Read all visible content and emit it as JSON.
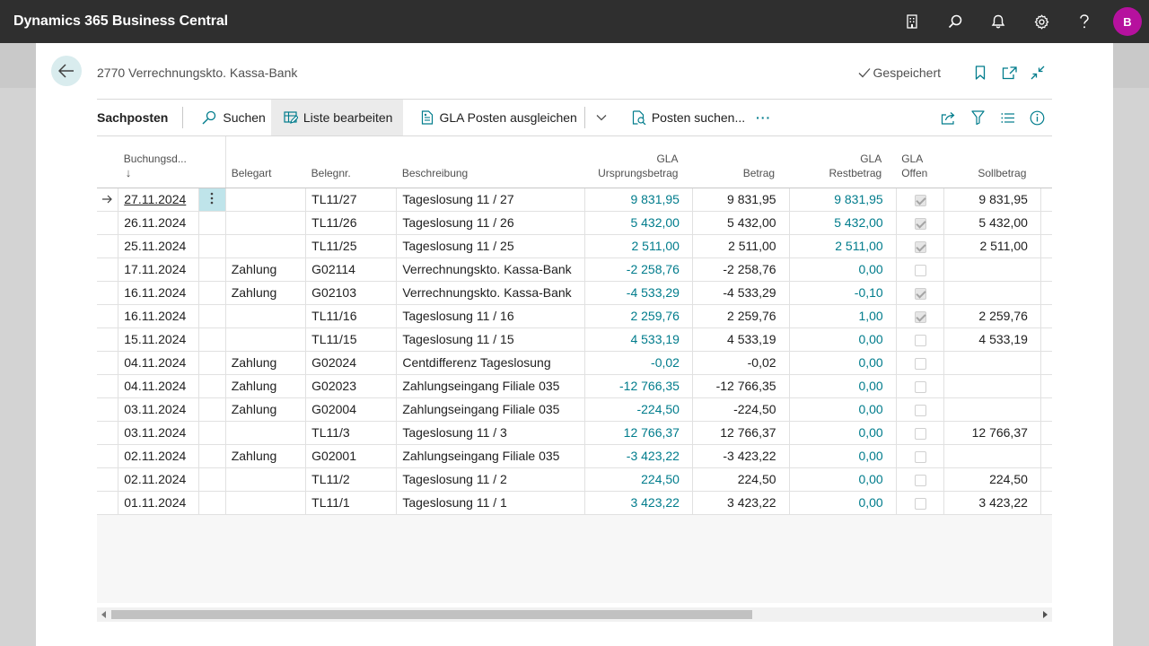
{
  "app": {
    "title": "Dynamics 365 Business Central",
    "avatar_initial": "B"
  },
  "page": {
    "title": "2770 Verrechnungskto. Kassa-Bank",
    "saved_label": "Gespeichert"
  },
  "actionbar": {
    "title": "Sachposten",
    "search": "Suchen",
    "edit_list": "Liste bearbeiten",
    "apply_entries": "GLA Posten ausgleichen",
    "find_entries": "Posten suchen...",
    "more": "···"
  },
  "columns": {
    "date_label": "Buchungsd...",
    "date_sort": "↓",
    "doc_type": "Belegart",
    "doc_no": "Belegnr.",
    "description": "Beschreibung",
    "orig_amount_l1": "GLA",
    "orig_amount_l2": "Ursprungsbetrag",
    "amount": "Betrag",
    "rem_amount_l1": "GLA",
    "rem_amount_l2": "Restbetrag",
    "open_l1": "GLA",
    "open_l2": "Offen",
    "debit": "Sollbetrag"
  },
  "rows": [
    {
      "date": "27.11.2024",
      "doctype": "",
      "docno": "TL11/27",
      "desc": "Tageslosung 11 / 27",
      "orig": "9 831,95",
      "amount": "9 831,95",
      "rest": "9 831,95",
      "open": true,
      "debit": "9 831,95"
    },
    {
      "date": "26.11.2024",
      "doctype": "",
      "docno": "TL11/26",
      "desc": "Tageslosung 11 / 26",
      "orig": "5 432,00",
      "amount": "5 432,00",
      "rest": "5 432,00",
      "open": true,
      "debit": "5 432,00"
    },
    {
      "date": "25.11.2024",
      "doctype": "",
      "docno": "TL11/25",
      "desc": "Tageslosung 11 / 25",
      "orig": "2 511,00",
      "amount": "2 511,00",
      "rest": "2 511,00",
      "open": true,
      "debit": "2 511,00"
    },
    {
      "date": "17.11.2024",
      "doctype": "Zahlung",
      "docno": "G02114",
      "desc": "Verrechnungskto. Kassa-Bank",
      "orig": "-2 258,76",
      "amount": "-2 258,76",
      "rest": "0,00",
      "open": false,
      "debit": ""
    },
    {
      "date": "16.11.2024",
      "doctype": "Zahlung",
      "docno": "G02103",
      "desc": "Verrechnungskto. Kassa-Bank",
      "orig": "-4 533,29",
      "amount": "-4 533,29",
      "rest": "-0,10",
      "open": true,
      "debit": ""
    },
    {
      "date": "16.11.2024",
      "doctype": "",
      "docno": "TL11/16",
      "desc": "Tageslosung 11 / 16",
      "orig": "2 259,76",
      "amount": "2 259,76",
      "rest": "1,00",
      "open": true,
      "debit": "2 259,76"
    },
    {
      "date": "15.11.2024",
      "doctype": "",
      "docno": "TL11/15",
      "desc": "Tageslosung 11 / 15",
      "orig": "4 533,19",
      "amount": "4 533,19",
      "rest": "0,00",
      "open": false,
      "debit": "4 533,19"
    },
    {
      "date": "04.11.2024",
      "doctype": "Zahlung",
      "docno": "G02024",
      "desc": "Centdifferenz Tageslosung",
      "orig": "-0,02",
      "amount": "-0,02",
      "rest": "0,00",
      "open": false,
      "debit": ""
    },
    {
      "date": "04.11.2024",
      "doctype": "Zahlung",
      "docno": "G02023",
      "desc": "Zahlungseingang Filiale 035",
      "orig": "-12 766,35",
      "amount": "-12 766,35",
      "rest": "0,00",
      "open": false,
      "debit": ""
    },
    {
      "date": "03.11.2024",
      "doctype": "Zahlung",
      "docno": "G02004",
      "desc": "Zahlungseingang Filiale 035",
      "orig": "-224,50",
      "amount": "-224,50",
      "rest": "0,00",
      "open": false,
      "debit": ""
    },
    {
      "date": "03.11.2024",
      "doctype": "",
      "docno": "TL11/3",
      "desc": "Tageslosung 11 / 3",
      "orig": "12 766,37",
      "amount": "12 766,37",
      "rest": "0,00",
      "open": false,
      "debit": "12 766,37"
    },
    {
      "date": "02.11.2024",
      "doctype": "Zahlung",
      "docno": "G02001",
      "desc": "Zahlungseingang Filiale 035",
      "orig": "-3 423,22",
      "amount": "-3 423,22",
      "rest": "0,00",
      "open": false,
      "debit": ""
    },
    {
      "date": "02.11.2024",
      "doctype": "",
      "docno": "TL11/2",
      "desc": "Tageslosung 11 / 2",
      "orig": "224,50",
      "amount": "224,50",
      "rest": "0,00",
      "open": false,
      "debit": "224,50"
    },
    {
      "date": "01.11.2024",
      "doctype": "",
      "docno": "TL11/1",
      "desc": "Tageslosung 11 / 1",
      "orig": "3 423,22",
      "amount": "3 423,22",
      "rest": "0,00",
      "open": false,
      "debit": "3 423,22"
    }
  ],
  "colors": {
    "appbar": "#2f2f2f",
    "teal": "#007c8c",
    "accent": "#b6119e",
    "selected_cell": "#bfe4ea"
  }
}
